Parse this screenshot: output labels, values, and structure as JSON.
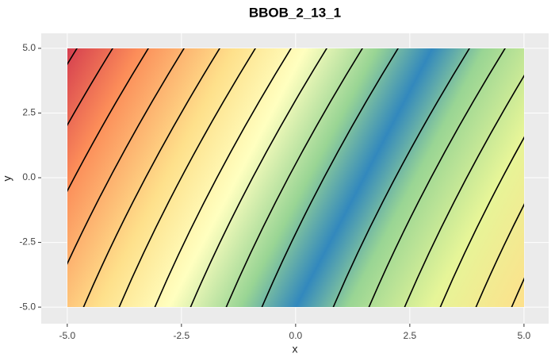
{
  "chart_data": {
    "type": "contour",
    "title": "BBOB_2_13_1",
    "x_label": "x",
    "y_label": "y",
    "xlim": [
      -5.57,
      5.54
    ],
    "ylim": [
      -5.64,
      5.58
    ],
    "xticks": [
      {
        "value": -5,
        "label": "-5.0"
      },
      {
        "value": -2.5,
        "label": "-2.5"
      },
      {
        "value": 0,
        "label": "0.0"
      },
      {
        "value": 2.5,
        "label": "2.5"
      },
      {
        "value": 5,
        "label": "5.0"
      }
    ],
    "yticks": [
      {
        "value": -5,
        "label": "-5.0"
      },
      {
        "value": -2.5,
        "label": "-2.5"
      },
      {
        "value": 0,
        "label": "0.0"
      },
      {
        "value": 2.5,
        "label": "2.5"
      },
      {
        "value": 5,
        "label": "5.0"
      }
    ],
    "grid": true
  }
}
